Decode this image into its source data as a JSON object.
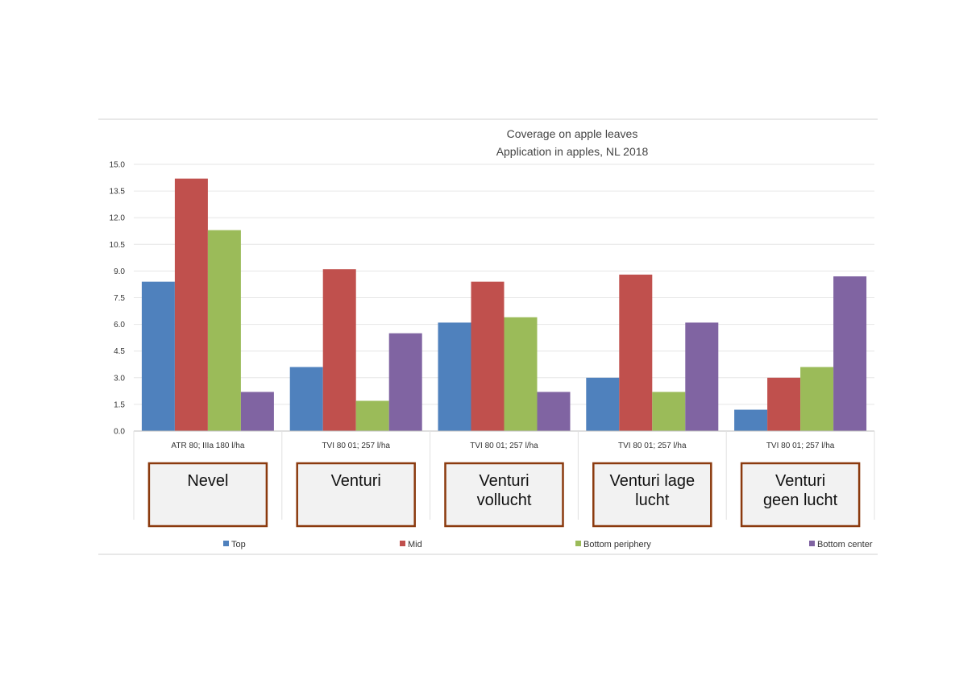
{
  "chart_data": {
    "type": "bar",
    "title": [
      "Coverage on apple leaves",
      "Application in apples, NL 2018"
    ],
    "categories": [
      "ATR 80; IIIa 180 l/ha",
      "TVI 80 01; 257 l/ha",
      "TVI 80 01; 257 l/ha",
      "TVI 80 01; 257 l/ha",
      "TVI 80 01; 257 l/ha"
    ],
    "category_boxes": [
      [
        "Nevel"
      ],
      [
        "Venturi"
      ],
      [
        "Venturi",
        "vollucht"
      ],
      [
        "Venturi lage",
        "lucht"
      ],
      [
        "Venturi",
        "geen lucht"
      ]
    ],
    "series": [
      {
        "name": "Top",
        "color": "#4F81BD",
        "values": [
          8.4,
          3.6,
          6.1,
          3.0,
          1.2
        ]
      },
      {
        "name": "Mid",
        "color": "#C0504D",
        "values": [
          14.2,
          9.1,
          8.4,
          8.8,
          3.0
        ]
      },
      {
        "name": "Bottom periphery",
        "color": "#9BBB59",
        "values": [
          11.3,
          1.7,
          6.4,
          2.2,
          3.6
        ]
      },
      {
        "name": "Bottom center",
        "color": "#8064A2",
        "values": [
          2.2,
          5.5,
          2.2,
          6.1,
          8.7
        ]
      }
    ],
    "yticks": [
      "0.0",
      "1.5",
      "3.0",
      "4.5",
      "6.0",
      "7.5",
      "9.0",
      "10.5",
      "12.0",
      "13.5",
      "15.0"
    ],
    "ylim": [
      0,
      15
    ],
    "grid": true,
    "legend_position": "bottom"
  }
}
